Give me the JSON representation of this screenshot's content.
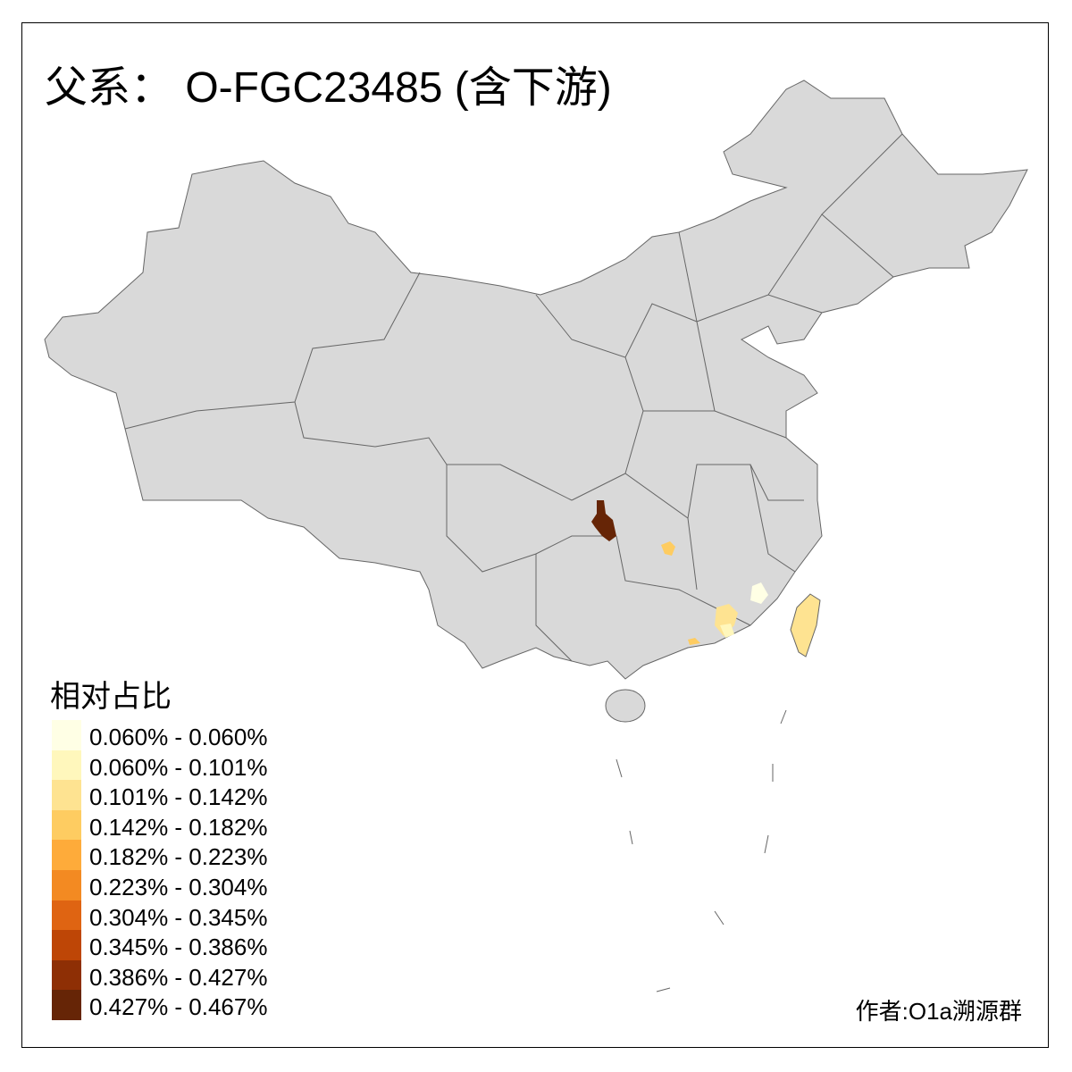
{
  "title": "父系： O-FGC23485 (含下游)",
  "legend": {
    "title": "相对占比",
    "items": [
      {
        "label": "0.060% - 0.060%",
        "color": "#FFFFE5"
      },
      {
        "label": "0.060% - 0.101%",
        "color": "#FFF7BC"
      },
      {
        "label": "0.101% - 0.142%",
        "color": "#FEE391"
      },
      {
        "label": "0.142% - 0.182%",
        "color": "#FECC61"
      },
      {
        "label": "0.182% - 0.223%",
        "color": "#FEAB3A"
      },
      {
        "label": "0.223% - 0.304%",
        "color": "#F38A22"
      },
      {
        "label": "0.304% - 0.345%",
        "color": "#DF6412"
      },
      {
        "label": "0.345% - 0.386%",
        "color": "#BE4606"
      },
      {
        "label": "0.386% - 0.427%",
        "color": "#8E2F05"
      },
      {
        "label": "0.427% - 0.467%",
        "color": "#662506"
      }
    ]
  },
  "map": {
    "base_color": "#D9D9D9",
    "border_color": "#666666"
  },
  "credit": "作者:O1a溯源群"
}
